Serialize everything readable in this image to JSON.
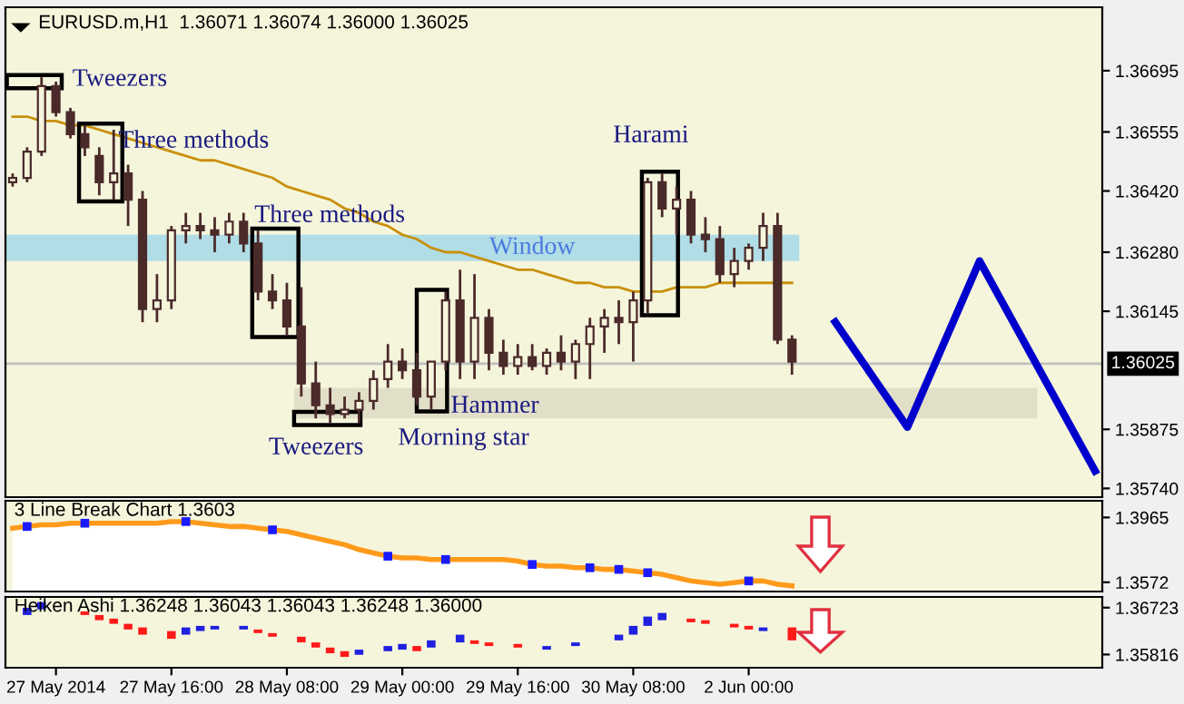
{
  "chart_data": [
    {
      "type": "candlestick",
      "title": "EURUSD.m,H1  1.36071 1.36074 1.36000 1.36025",
      "color": "#4b2a2a",
      "categories": [
        null,
        null,
        null,
        null,
        null,
        null,
        null,
        null,
        null,
        null,
        null,
        null,
        null,
        null,
        null,
        null,
        null,
        null,
        null,
        null,
        null,
        null,
        null,
        null,
        null,
        null,
        null,
        null,
        null,
        null,
        null,
        null,
        null,
        null,
        null,
        null,
        null,
        null,
        null,
        null,
        null,
        null,
        null,
        null,
        null,
        null,
        null,
        null,
        null,
        null,
        null,
        null,
        null,
        null,
        null,
        null,
        null,
        null,
        null,
        null,
        null,
        null,
        null,
        null,
        null,
        null,
        null,
        null,
        null,
        null,
        null,
        null,
        null,
        null,
        null,
        null
      ],
      "ohlc": [
        [
          1.3644,
          1.3646,
          1.3643,
          1.3645
        ],
        [
          1.3645,
          1.3652,
          1.3644,
          1.3651
        ],
        [
          1.3651,
          1.3668,
          1.365,
          1.3666
        ],
        [
          1.3666,
          1.3667,
          1.3659,
          1.366
        ],
        [
          1.366,
          1.3661,
          1.3654,
          1.3655
        ],
        [
          1.3655,
          1.3657,
          1.365,
          1.3652
        ],
        [
          1.365,
          1.3652,
          1.3641,
          1.3644
        ],
        [
          1.3644,
          1.3656,
          1.364,
          1.3646
        ],
        [
          1.3646,
          1.3648,
          1.3634,
          1.364
        ],
        [
          1.364,
          1.3642,
          1.3612,
          1.3615
        ],
        [
          1.3615,
          1.3623,
          1.3612,
          1.3617
        ],
        [
          1.3617,
          1.3634,
          1.3615,
          1.3633
        ],
        [
          1.3633,
          1.3637,
          1.363,
          1.3634
        ],
        [
          1.3634,
          1.3637,
          1.3631,
          1.3633
        ],
        [
          1.3633,
          1.3636,
          1.3628,
          1.3632
        ],
        [
          1.3632,
          1.3637,
          1.363,
          1.3635
        ],
        [
          1.3635,
          1.3637,
          1.3628,
          1.363
        ],
        [
          1.363,
          1.3633,
          1.3617,
          1.3619
        ],
        [
          1.3619,
          1.3623,
          1.3615,
          1.3617
        ],
        [
          1.3617,
          1.3621,
          1.3609,
          1.3611
        ],
        [
          1.3611,
          1.362,
          1.3595,
          1.3598
        ],
        [
          1.3598,
          1.3603,
          1.359,
          1.3593
        ],
        [
          1.3593,
          1.3597,
          1.3589,
          1.3591
        ],
        [
          1.3591,
          1.3595,
          1.359,
          1.3592
        ],
        [
          1.3592,
          1.3596,
          1.3589,
          1.3594
        ],
        [
          1.3594,
          1.3601,
          1.3592,
          1.3599
        ],
        [
          1.3599,
          1.3607,
          1.3597,
          1.3603
        ],
        [
          1.3603,
          1.3606,
          1.3599,
          1.3601
        ],
        [
          1.3601,
          1.3605,
          1.3593,
          1.3595
        ],
        [
          1.3595,
          1.3603,
          1.3592,
          1.3603
        ],
        [
          1.3603,
          1.3619,
          1.3601,
          1.3617
        ],
        [
          1.3617,
          1.3624,
          1.3599,
          1.3603
        ],
        [
          1.3603,
          1.3623,
          1.3599,
          1.3613
        ],
        [
          1.3613,
          1.3615,
          1.3601,
          1.3605
        ],
        [
          1.3605,
          1.3608,
          1.36,
          1.3602
        ],
        [
          1.3602,
          1.3607,
          1.36,
          1.3604
        ],
        [
          1.3604,
          1.3607,
          1.3601,
          1.3602
        ],
        [
          1.3602,
          1.3606,
          1.36,
          1.3605
        ],
        [
          1.3605,
          1.3609,
          1.3601,
          1.3603
        ],
        [
          1.3603,
          1.3608,
          1.3599,
          1.3607
        ],
        [
          1.3607,
          1.3613,
          1.3599,
          1.3611
        ],
        [
          1.3611,
          1.3615,
          1.3605,
          1.3613
        ],
        [
          1.3613,
          1.3617,
          1.3607,
          1.3612
        ],
        [
          1.3612,
          1.3619,
          1.3603,
          1.3617
        ],
        [
          1.3617,
          1.3645,
          1.3614,
          1.3644
        ],
        [
          1.3644,
          1.3646,
          1.3636,
          1.3638
        ],
        [
          1.3638,
          1.3643,
          1.3632,
          1.364
        ],
        [
          1.364,
          1.3642,
          1.363,
          1.3632
        ],
        [
          1.3632,
          1.3636,
          1.3628,
          1.3631
        ],
        [
          1.3631,
          1.3634,
          1.3621,
          1.3623
        ],
        [
          1.3623,
          1.3629,
          1.362,
          1.3626
        ],
        [
          1.3626,
          1.363,
          1.3624,
          1.3629
        ],
        [
          1.3629,
          1.3637,
          1.3626,
          1.3634
        ],
        [
          1.3634,
          1.3637,
          1.3607,
          1.3608
        ],
        [
          1.3608,
          1.3609,
          1.36,
          1.3603
        ],
        null,
        null,
        null,
        null,
        null,
        null,
        null,
        null,
        null,
        null,
        null,
        null,
        null,
        null,
        null,
        null,
        null,
        null,
        null,
        null,
        null
      ],
      "series": [
        {
          "type": "line",
          "color": "#c8900a",
          "values": [
            1.3659,
            1.3659,
            1.3658,
            1.3658,
            1.3657,
            1.3657,
            1.3656,
            1.3655,
            1.3654,
            1.3653,
            1.3652,
            1.3651,
            1.365,
            1.3649,
            1.3649,
            1.3648,
            1.3647,
            1.3646,
            1.3645,
            1.3643,
            1.3642,
            1.3641,
            1.364,
            1.3638,
            1.3637,
            1.3635,
            1.3634,
            1.3632,
            1.3631,
            1.3629,
            1.3628,
            1.3628,
            1.3627,
            1.3626,
            1.3625,
            1.3624,
            1.3624,
            1.3623,
            1.3622,
            1.3621,
            1.3621,
            1.362,
            1.362,
            1.3619,
            1.3619,
            1.3619,
            1.362,
            1.362,
            1.362,
            1.3621,
            1.3621,
            1.3621,
            1.3621,
            1.3621,
            1.3621,
            null,
            null,
            null,
            null,
            null,
            null,
            null,
            null,
            null,
            null,
            null,
            null,
            null,
            null,
            null,
            null,
            null,
            null,
            null,
            null,
            null
          ]
        },
        {
          "type": "line",
          "color": "#0000cc",
          "values": [
            null,
            null,
            null,
            null,
            null,
            null,
            null,
            null,
            null,
            null,
            null,
            null,
            null,
            null,
            null,
            null,
            null,
            null,
            null,
            null,
            null,
            null,
            null,
            null,
            null,
            null,
            null,
            null,
            null,
            null,
            null,
            null,
            null,
            null,
            null,
            null,
            null,
            null,
            null,
            null,
            null,
            null,
            null,
            null,
            null,
            null,
            null,
            null,
            null,
            null,
            null,
            null,
            null,
            null,
            null,
            null,
            null,
            1.3612,
            null,
            null,
            null,
            null,
            1.3588,
            null,
            null,
            null,
            null,
            1.3626,
            null,
            null,
            null,
            null,
            null,
            null,
            null,
            1.3578
          ]
        }
      ],
      "bands": [
        {
          "axis": "y",
          "from": 1.3626,
          "to": 1.3632,
          "label": "Window",
          "color": "#b0dde6"
        },
        {
          "axis": "y",
          "from": 1.359,
          "to": 1.3597,
          "color": "#e2dfc8"
        }
      ],
      "ref_lines": [
        {
          "axis": "y",
          "value": 1.36025,
          "label": "1.36025",
          "color": "#c0c0c0"
        }
      ],
      "annotations": [
        "Tweezers",
        "Three methods",
        "Three methods",
        "Tweezers",
        "Morning star",
        "Hammer",
        "Harami"
      ],
      "ylim": [
        1.3572,
        1.3684
      ],
      "yticks": [
        {
          "value": 1.36695,
          "label": "1.36695"
        },
        {
          "value": 1.36555,
          "label": "1.36555"
        },
        {
          "value": 1.3642,
          "label": "1.36420"
        },
        {
          "value": 1.3628,
          "label": "1.36280"
        },
        {
          "value": 1.36145,
          "label": "1.36145"
        },
        {
          "value": 1.35875,
          "label": "1.35875"
        },
        {
          "value": 1.3574,
          "label": "1.35740"
        }
      ],
      "tick_labels": "y"
    },
    {
      "type": "area",
      "title": "3 Line Break Chart 1.3603",
      "categories": [
        null,
        null,
        null,
        null,
        null,
        null,
        null,
        null,
        null,
        null,
        null,
        null,
        null,
        null,
        null,
        null,
        null,
        null,
        null,
        null,
        null,
        null,
        null,
        null,
        null,
        null,
        null,
        null,
        null,
        null,
        null,
        null,
        null,
        null,
        null,
        null,
        null,
        null,
        null,
        null,
        null,
        null,
        null,
        null,
        null,
        null,
        null,
        null,
        null,
        null,
        null,
        null,
        null,
        null,
        null,
        null,
        null,
        null,
        null,
        null,
        null,
        null,
        null,
        null,
        null,
        null,
        null,
        null,
        null,
        null,
        null,
        null,
        null,
        null,
        null,
        null
      ],
      "series": [
        {
          "type": "area",
          "color": "#ff9a1a",
          "values": [
            1.39,
            1.391,
            1.392,
            1.392,
            1.393,
            1.393,
            1.393,
            1.393,
            1.393,
            1.393,
            1.393,
            1.394,
            1.394,
            1.393,
            1.392,
            1.391,
            1.391,
            1.39,
            1.389,
            1.388,
            1.386,
            1.384,
            1.382,
            1.38,
            1.377,
            1.375,
            1.373,
            1.372,
            1.372,
            1.371,
            1.371,
            1.371,
            1.371,
            1.371,
            1.371,
            1.37,
            1.368,
            1.367,
            1.367,
            1.366,
            1.366,
            1.365,
            1.365,
            1.364,
            1.363,
            1.362,
            1.36,
            1.358,
            1.357,
            1.356,
            1.357,
            1.358,
            1.358,
            1.356,
            1.355,
            null,
            null,
            null,
            null,
            null,
            null,
            null,
            null,
            null,
            null,
            null,
            null,
            null,
            null,
            null,
            null,
            null,
            null,
            null,
            null,
            null
          ]
        },
        {
          "type": "scatter",
          "color": "#1a1aff",
          "marker": "square",
          "values": [
            null,
            1.391,
            null,
            null,
            null,
            1.393,
            null,
            null,
            null,
            null,
            null,
            null,
            1.394,
            null,
            null,
            null,
            null,
            null,
            1.389,
            null,
            null,
            null,
            null,
            null,
            null,
            null,
            1.373,
            null,
            null,
            null,
            1.371,
            null,
            null,
            null,
            null,
            null,
            1.368,
            null,
            null,
            null,
            1.366,
            null,
            1.365,
            null,
            1.363,
            null,
            null,
            null,
            null,
            null,
            null,
            1.358,
            null,
            null,
            null,
            null,
            null,
            null,
            null,
            null,
            null,
            null,
            null,
            null,
            null,
            null,
            null,
            null,
            null,
            null,
            null,
            null,
            null,
            null,
            null,
            null
          ]
        }
      ],
      "ylim": [
        1.3516,
        1.4066
      ],
      "yticks": [
        1.3965,
        1.3572
      ],
      "tick_labels": "y"
    },
    {
      "type": "bar",
      "title": "Heiken Ashi 1.36248 1.36043 1.36043 1.36248 1.36000",
      "categories": [
        null,
        null,
        null,
        "27 May 2014",
        null,
        null,
        null,
        null,
        null,
        null,
        null,
        "27 May 16:00",
        null,
        null,
        null,
        null,
        null,
        null,
        null,
        "28 May 08:00",
        null,
        null,
        null,
        null,
        null,
        null,
        null,
        "29 May 00:00",
        null,
        null,
        null,
        null,
        null,
        null,
        null,
        "29 May 16:00",
        null,
        null,
        null,
        null,
        null,
        null,
        null,
        "30 May 08:00",
        null,
        null,
        null,
        null,
        null,
        null,
        null,
        "2 Jun 00:00",
        null,
        null,
        null,
        null,
        null,
        null,
        null,
        null,
        null,
        null,
        null,
        null,
        null,
        null,
        null,
        null,
        null,
        null,
        null,
        null,
        null,
        null,
        null,
        null
      ],
      "series": [
        {
          "type": "bar",
          "color": "#2020e0",
          "base": [
            null,
            1.3658,
            1.3669,
            null,
            null,
            null,
            null,
            null,
            null,
            null,
            null,
            null,
            1.362,
            1.3627,
            1.363,
            null,
            1.363,
            null,
            null,
            null,
            null,
            null,
            null,
            null,
            1.3581,
            null,
            1.3588,
            1.3591,
            null,
            1.3595,
            null,
            1.3605,
            null,
            null,
            null,
            null,
            null,
            1.3591,
            null,
            1.3598,
            null,
            null,
            1.3609,
            1.362,
            1.3637,
            1.3648,
            null,
            null,
            null,
            null,
            null,
            null,
            1.3627,
            null,
            null,
            null,
            null,
            null,
            null,
            null,
            null,
            null,
            null,
            null,
            null,
            null,
            null,
            null,
            null,
            null,
            null,
            null,
            null,
            null,
            null,
            null
          ],
          "values": [
            null,
            0.0014,
            0.0014,
            null,
            null,
            null,
            null,
            null,
            null,
            null,
            null,
            null,
            0.0014,
            0.001,
            0.0007,
            null,
            0.0007,
            null,
            null,
            null,
            null,
            null,
            null,
            null,
            0.001,
            null,
            0.001,
            0.0011,
            null,
            0.0014,
            null,
            0.0015,
            null,
            null,
            null,
            null,
            null,
            0.0007,
            null,
            0.0007,
            null,
            null,
            0.0011,
            0.0017,
            0.0018,
            0.0014,
            null,
            null,
            null,
            null,
            null,
            null,
            0.0007,
            null,
            null,
            null,
            null,
            null,
            null,
            null,
            null,
            null,
            null,
            null,
            null,
            null,
            null,
            null,
            null,
            null,
            null,
            null,
            null,
            null,
            null,
            null
          ]
        },
        {
          "type": "bar",
          "color": "#ff1a1a",
          "base": [
            null,
            null,
            null,
            null,
            null,
            1.3658,
            1.3648,
            1.3641,
            1.363,
            1.362,
            null,
            1.3612,
            null,
            null,
            null,
            null,
            null,
            1.3623,
            1.3616,
            null,
            1.3605,
            1.3595,
            1.3584,
            1.3577,
            null,
            null,
            null,
            null,
            1.3588,
            null,
            null,
            null,
            1.3602,
            1.3598,
            null,
            1.3595,
            null,
            null,
            null,
            null,
            null,
            null,
            null,
            null,
            null,
            null,
            null,
            1.3644,
            1.3641,
            null,
            1.3634,
            1.363,
            null,
            null,
            1.3609,
            null,
            null,
            null,
            null,
            null,
            null,
            null,
            null,
            null,
            null,
            null,
            null,
            null,
            null,
            null,
            null,
            null,
            null,
            null,
            null,
            null
          ],
          "values": [
            null,
            null,
            null,
            null,
            null,
            0.0007,
            0.001,
            0.001,
            0.0011,
            0.0014,
            null,
            0.0015,
            null,
            null,
            null,
            null,
            null,
            0.0007,
            0.0007,
            null,
            0.0011,
            0.001,
            0.0011,
            0.0011,
            null,
            null,
            null,
            null,
            0.001,
            null,
            null,
            null,
            0.0007,
            0.0007,
            null,
            0.0007,
            null,
            null,
            null,
            null,
            null,
            null,
            null,
            null,
            null,
            null,
            null,
            0.0007,
            0.0007,
            null,
            0.0007,
            0.0007,
            null,
            null,
            0.0025,
            null,
            null,
            null,
            null,
            null,
            null,
            null,
            null,
            null,
            null,
            null,
            null,
            null,
            null,
            null,
            null,
            null,
            null,
            null,
            null,
            null
          ]
        }
      ],
      "ylim": [
        1.3556,
        1.3693
      ],
      "yticks": [
        1.36723,
        1.35816
      ]
    }
  ]
}
